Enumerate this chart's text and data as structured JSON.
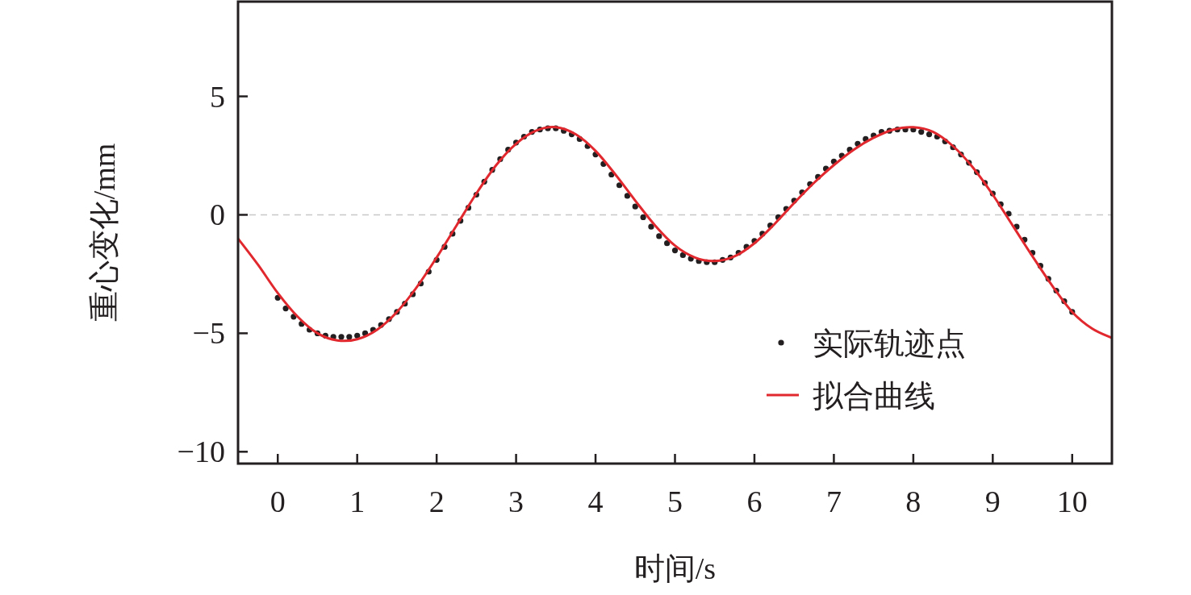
{
  "chart_data": {
    "type": "line",
    "xlabel": "时间/s",
    "ylabel": "重心变化/mm",
    "xlim": [
      -0.5,
      10.5
    ],
    "ylim": [
      -10.5,
      9
    ],
    "xticks": [
      0,
      1,
      2,
      3,
      4,
      5,
      6,
      7,
      8,
      9,
      10
    ],
    "yticks": [
      -10,
      -5,
      0,
      5
    ],
    "grid": false,
    "legend": "bottom right",
    "ref_lines": [
      {
        "axis": "y",
        "value": 0,
        "color": "#c8c8c8",
        "line_style": "dashed"
      }
    ],
    "series": [
      {
        "name": "实际轨迹点",
        "type": "scatter",
        "marker": "circle",
        "color": "#231f20",
        "x": [
          0,
          0.1,
          0.2,
          0.3,
          0.4,
          0.5,
          0.6,
          0.7,
          0.8,
          0.9,
          1,
          1.1,
          1.2,
          1.3,
          1.4,
          1.5,
          1.6,
          1.7,
          1.8,
          1.9,
          2,
          2.1,
          2.2,
          2.3,
          2.4,
          2.5,
          2.6,
          2.7,
          2.8,
          2.9,
          3,
          3.1,
          3.2,
          3.3,
          3.4,
          3.5,
          3.6,
          3.7,
          3.8,
          3.9,
          4,
          4.1,
          4.2,
          4.3,
          4.4,
          4.5,
          4.6,
          4.7,
          4.8,
          4.9,
          5,
          5.1,
          5.2,
          5.3,
          5.4,
          5.5,
          5.6,
          5.7,
          5.8,
          5.9,
          6,
          6.1,
          6.2,
          6.3,
          6.4,
          6.5,
          6.6,
          6.7,
          6.8,
          6.9,
          7,
          7.1,
          7.2,
          7.3,
          7.4,
          7.5,
          7.6,
          7.7,
          7.8,
          7.9,
          8,
          8.1,
          8.2,
          8.3,
          8.4,
          8.5,
          8.6,
          8.7,
          8.8,
          8.9,
          9,
          9.1,
          9.2,
          9.3,
          9.4,
          9.5,
          9.6,
          9.7,
          9.8,
          9.9,
          10
        ],
        "values": [
          -3.5,
          -3.95,
          -4.3,
          -4.6,
          -4.85,
          -5.0,
          -5.1,
          -5.15,
          -5.15,
          -5.15,
          -5.1,
          -5.0,
          -4.85,
          -4.65,
          -4.4,
          -4.1,
          -3.75,
          -3.35,
          -2.9,
          -2.4,
          -1.9,
          -1.35,
          -0.8,
          -0.25,
          0.3,
          0.85,
          1.4,
          1.9,
          2.35,
          2.75,
          3.05,
          3.3,
          3.5,
          3.6,
          3.65,
          3.65,
          3.55,
          3.4,
          3.2,
          2.9,
          2.55,
          2.15,
          1.7,
          1.25,
          0.8,
          0.35,
          -0.1,
          -0.5,
          -0.9,
          -1.2,
          -1.5,
          -1.7,
          -1.85,
          -1.95,
          -2.0,
          -2.0,
          -1.9,
          -1.8,
          -1.6,
          -1.35,
          -1.1,
          -0.8,
          -0.45,
          -0.1,
          0.25,
          0.6,
          0.95,
          1.3,
          1.6,
          1.95,
          2.25,
          2.5,
          2.75,
          3.0,
          3.2,
          3.35,
          3.5,
          3.55,
          3.6,
          3.6,
          3.6,
          3.5,
          3.4,
          3.3,
          3.1,
          2.85,
          2.55,
          2.2,
          1.8,
          1.35,
          0.9,
          0.45,
          0.05,
          -0.5,
          -1.05,
          -1.6,
          -2.15,
          -2.7,
          -3.2,
          -3.65,
          -4.1
        ]
      },
      {
        "name": "拟合曲线",
        "type": "line",
        "color": "#e0282e",
        "x": [
          -0.5,
          -0.25,
          0,
          0.25,
          0.5,
          0.75,
          1,
          1.25,
          1.5,
          1.75,
          2,
          2.25,
          2.5,
          2.75,
          3,
          3.25,
          3.5,
          3.75,
          4,
          4.25,
          4.5,
          4.75,
          5,
          5.25,
          5.5,
          5.75,
          6,
          6.25,
          6.5,
          6.75,
          7,
          7.25,
          7.5,
          7.75,
          8,
          8.25,
          8.5,
          8.75,
          9,
          9.25,
          9.5,
          9.75,
          10,
          10.25,
          10.5
        ],
        "values": [
          -1.0,
          -2.1,
          -3.3,
          -4.3,
          -5.0,
          -5.3,
          -5.25,
          -4.85,
          -4.1,
          -3.05,
          -1.8,
          -0.45,
          0.9,
          2.1,
          3.0,
          3.55,
          3.7,
          3.4,
          2.7,
          1.7,
          0.6,
          -0.45,
          -1.3,
          -1.8,
          -1.95,
          -1.75,
          -1.2,
          -0.4,
          0.5,
          1.35,
          2.1,
          2.75,
          3.25,
          3.6,
          3.7,
          3.5,
          2.9,
          2.0,
          0.85,
          -0.45,
          -1.75,
          -3.0,
          -4.1,
          -4.8,
          -5.2
        ]
      }
    ]
  }
}
